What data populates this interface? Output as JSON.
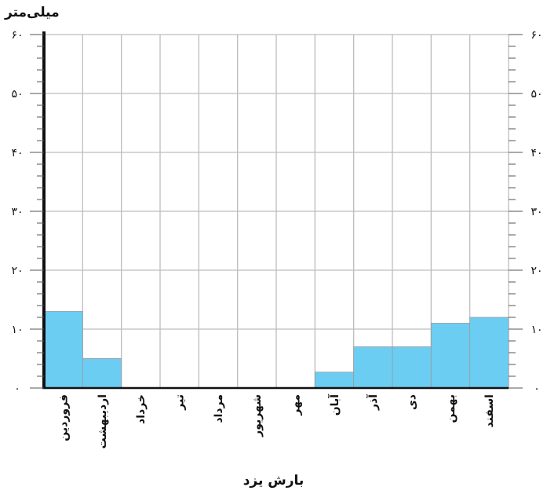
{
  "chart_data": {
    "type": "bar",
    "title": "بارش یزد",
    "ylabel": "میلی‌متر",
    "xlabel": "",
    "ylim": [
      0,
      60
    ],
    "yticks": [
      "۰",
      "۱۰",
      "۲۰",
      "۳۰",
      "۴۰",
      "۵۰",
      "۶۰"
    ],
    "categories": [
      "فروردین",
      "اردیبهشت",
      "خرداد",
      "تیر",
      "مرداد",
      "شهریور",
      "مهر",
      "آبان",
      "آذر",
      "دی",
      "بهمن",
      "اسفند"
    ],
    "values": [
      13,
      5,
      0,
      0,
      0,
      0,
      0,
      2.7,
      7,
      7,
      11,
      12
    ],
    "bar_color": "#6ccdf3",
    "grid": true
  }
}
